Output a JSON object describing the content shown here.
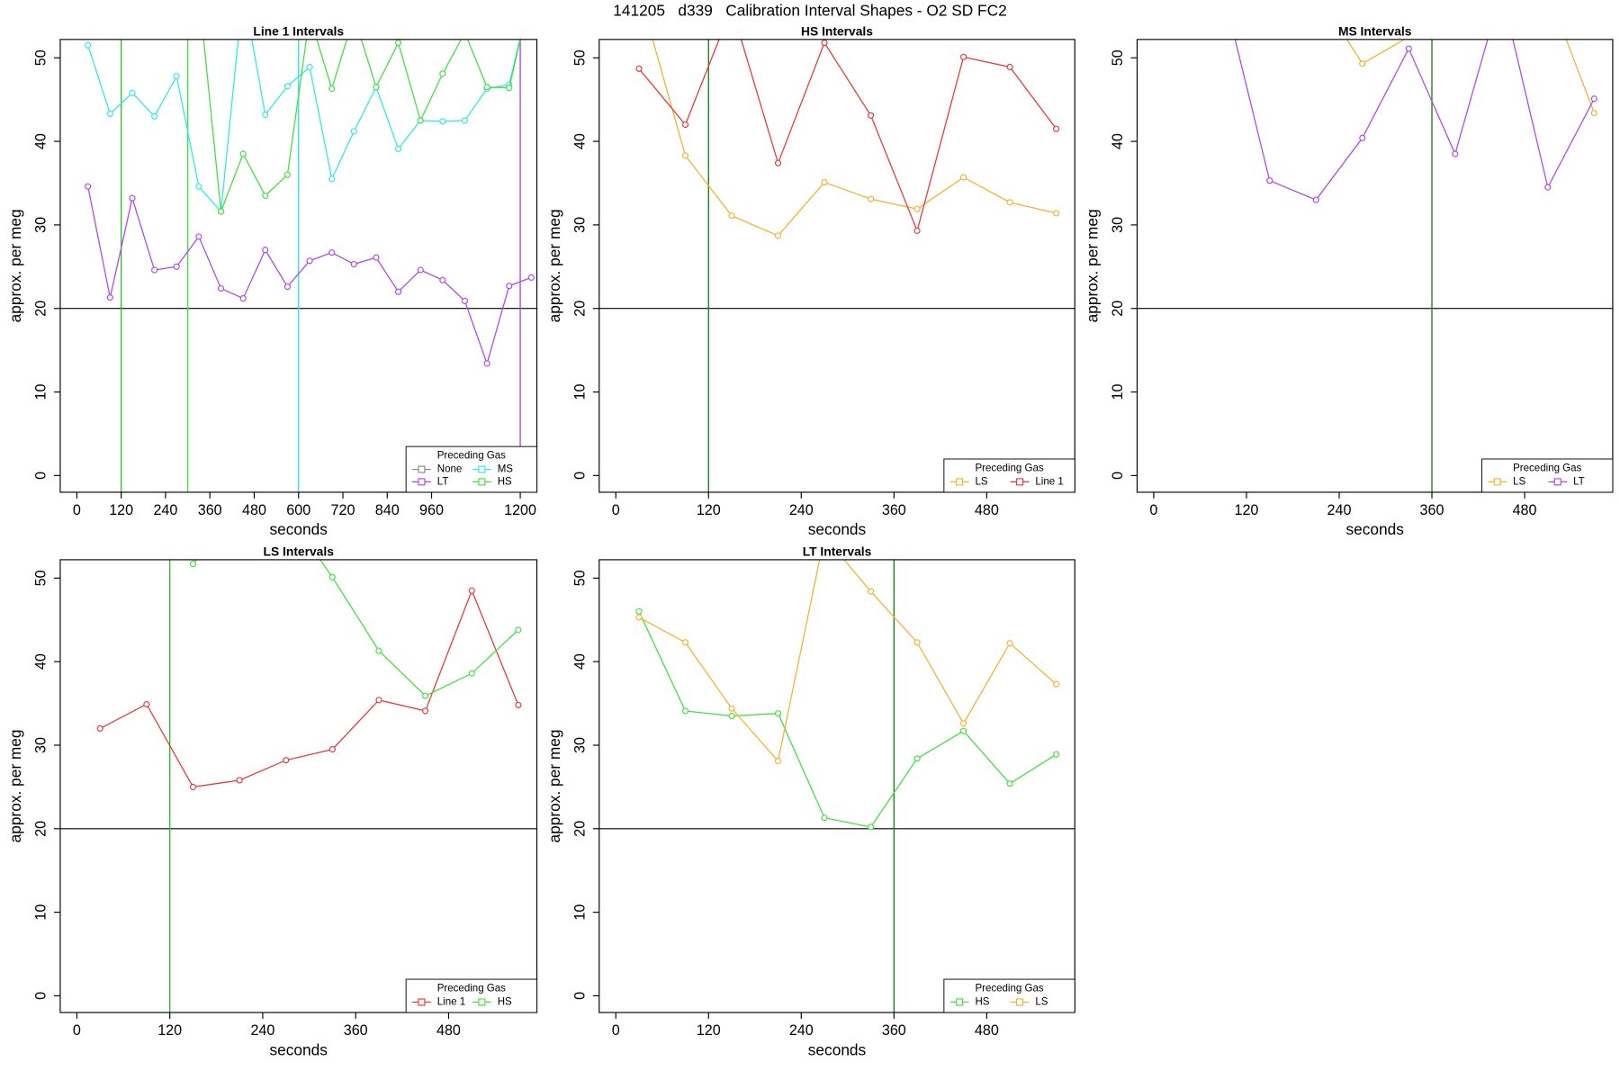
{
  "title": "141205   d339   Calibration Interval Shapes - O2 SD FC2",
  "chart_data": [
    {
      "type": "line",
      "title": "Line 1 Intervals",
      "xlabel": "seconds",
      "ylabel": "approx. per meg",
      "x": [
        30,
        90,
        150,
        210,
        270,
        330,
        390,
        450,
        510,
        570,
        630,
        690,
        750,
        810,
        870,
        930,
        990,
        1050,
        1110,
        1170,
        1230
      ],
      "series": [
        {
          "name": "None",
          "color": "#888888",
          "values": [
            null,
            null,
            null,
            null,
            null,
            null,
            null,
            null,
            null,
            null,
            null,
            null,
            null,
            null,
            null,
            null,
            null,
            null,
            null,
            null,
            null
          ]
        },
        {
          "name": "LT",
          "color": "#b048e8",
          "values": [
            34.6,
            21.3,
            33.2,
            24.6,
            25.0,
            28.6,
            22.4,
            21.2,
            27.0,
            22.6,
            25.7,
            26.7,
            25.3,
            26.1,
            22.0,
            24.6,
            23.4,
            20.9,
            13.4,
            22.7,
            23.7
          ]
        },
        {
          "name": "MS",
          "color": "#30e8e8",
          "values": [
            51.5,
            43.3,
            45.8,
            43.0,
            47.8,
            34.6,
            31.6,
            58,
            43.2,
            46.6,
            48.9,
            35.5,
            41.2,
            46.5,
            39.1,
            42.5,
            42.4,
            42.5,
            46.3,
            46.8,
            58
          ]
        },
        {
          "name": "HS",
          "color": "#40e040",
          "values": [
            null,
            null,
            null,
            null,
            null,
            58,
            31.6,
            38.5,
            33.5,
            36.0,
            55,
            46.3,
            55,
            46.5,
            51.8,
            42.5,
            48.1,
            53,
            46.5,
            46.4,
            58
          ]
        }
      ],
      "xlim": [
        -45,
        1245
      ],
      "ylim": [
        -2,
        52.2
      ],
      "xticks": [
        0,
        120,
        240,
        360,
        480,
        600,
        720,
        840,
        960,
        1200
      ],
      "yticks": [
        0,
        10,
        20,
        30,
        40,
        50
      ],
      "hline": 20,
      "vlines": [
        {
          "x": 120,
          "color": "#30c030"
        },
        {
          "x": 300,
          "color": "#40e040"
        },
        {
          "x": 600,
          "color": "#30e8e8"
        },
        {
          "x": 1200,
          "color": "#b048e8"
        }
      ],
      "legend": {
        "title": "Preceding Gas",
        "position": "bottom-right",
        "ncol": 2
      }
    },
    {
      "type": "line",
      "title": "HS Intervals",
      "xlabel": "seconds",
      "ylabel": "approx. per meg",
      "x": [
        30,
        90,
        150,
        210,
        270,
        330,
        390,
        450,
        510,
        570
      ],
      "series": [
        {
          "name": "LS",
          "color": "#f8b030",
          "values": [
            58,
            38.3,
            31.1,
            28.7,
            35.1,
            33.1,
            31.9,
            35.7,
            32.7,
            31.4
          ]
        },
        {
          "name": "Line 1",
          "color": "#e83838",
          "values": [
            48.7,
            42.0,
            56,
            37.4,
            51.8,
            43.1,
            29.3,
            50.1,
            48.9,
            41.5
          ]
        }
      ],
      "xlim": [
        -21.5,
        594
      ],
      "ylim": [
        -2,
        52.2
      ],
      "xticks": [
        0,
        120,
        240,
        360,
        480
      ],
      "yticks": [
        0,
        10,
        20,
        30,
        40,
        50
      ],
      "hline": 20,
      "vlines": [
        {
          "x": 120,
          "color": "#208020"
        }
      ],
      "legend": {
        "title": "Preceding Gas",
        "position": "bottom-right",
        "ncol": 2
      }
    },
    {
      "type": "line",
      "title": "MS Intervals",
      "xlabel": "seconds",
      "ylabel": "approx. per meg",
      "x": [
        30,
        90,
        150,
        210,
        270,
        330,
        390,
        450,
        510,
        570
      ],
      "series": [
        {
          "name": "LS",
          "color": "#f8b030",
          "values": [
            null,
            null,
            null,
            58,
            49.3,
            52.5,
            null,
            null,
            58,
            43.4
          ]
        },
        {
          "name": "LT",
          "color": "#b048e8",
          "values": [
            null,
            58,
            35.3,
            33.0,
            40.4,
            51.1,
            38.5,
            58,
            34.5,
            45.1
          ]
        }
      ],
      "xlim": [
        -21.5,
        594
      ],
      "ylim": [
        -2,
        52.2
      ],
      "xticks": [
        0,
        120,
        240,
        360,
        480
      ],
      "yticks": [
        0,
        10,
        20,
        30,
        40,
        50
      ],
      "hline": 20,
      "vlines": [
        {
          "x": 360,
          "color": "#208020"
        }
      ],
      "legend": {
        "title": "Preceding Gas",
        "position": "bottom-right",
        "ncol": 2
      }
    },
    {
      "type": "line",
      "title": "LS Intervals",
      "xlabel": "seconds",
      "ylabel": "approx. per meg",
      "x": [
        30,
        90,
        150,
        210,
        270,
        330,
        390,
        450,
        510,
        570
      ],
      "series": [
        {
          "name": "Line 1",
          "color": "#e83838",
          "values": [
            32.0,
            34.9,
            25.0,
            25.8,
            28.2,
            29.5,
            35.4,
            34.1,
            48.5,
            34.8
          ]
        },
        {
          "name": "HS",
          "color": "#40e040",
          "values": [
            null,
            null,
            51.7,
            58,
            58,
            50.1,
            41.3,
            35.9,
            38.6,
            43.8
          ]
        }
      ],
      "xlim": [
        -21.5,
        594
      ],
      "ylim": [
        -2,
        52.2
      ],
      "xticks": [
        0,
        120,
        240,
        360,
        480
      ],
      "yticks": [
        0,
        10,
        20,
        30,
        40,
        50
      ],
      "hline": 20,
      "vlines": [
        {
          "x": 120,
          "color": "#30c030"
        }
      ],
      "legend": {
        "title": "Preceding Gas",
        "position": "bottom-right",
        "ncol": 2
      }
    },
    {
      "type": "line",
      "title": "LT Intervals",
      "xlabel": "seconds",
      "ylabel": "approx. per meg",
      "x": [
        30,
        90,
        150,
        210,
        270,
        330,
        390,
        450,
        510,
        570
      ],
      "series": [
        {
          "name": "HS",
          "color": "#40e040",
          "values": [
            46.0,
            34.1,
            33.5,
            33.8,
            21.3,
            20.2,
            28.4,
            31.7,
            25.4,
            28.9
          ]
        },
        {
          "name": "LS",
          "color": "#f8b030",
          "values": [
            45.3,
            42.3,
            34.4,
            28.1,
            55,
            48.4,
            42.3,
            32.6,
            42.2,
            37.3
          ]
        }
      ],
      "xlim": [
        -21.5,
        594
      ],
      "ylim": [
        -2,
        52.2
      ],
      "xticks": [
        0,
        120,
        240,
        360,
        480
      ],
      "yticks": [
        0,
        10,
        20,
        30,
        40,
        50
      ],
      "hline": 20,
      "vlines": [
        {
          "x": 360,
          "color": "#208020"
        }
      ],
      "legend": {
        "title": "Preceding Gas",
        "position": "bottom-right",
        "ncol": 2
      }
    }
  ]
}
